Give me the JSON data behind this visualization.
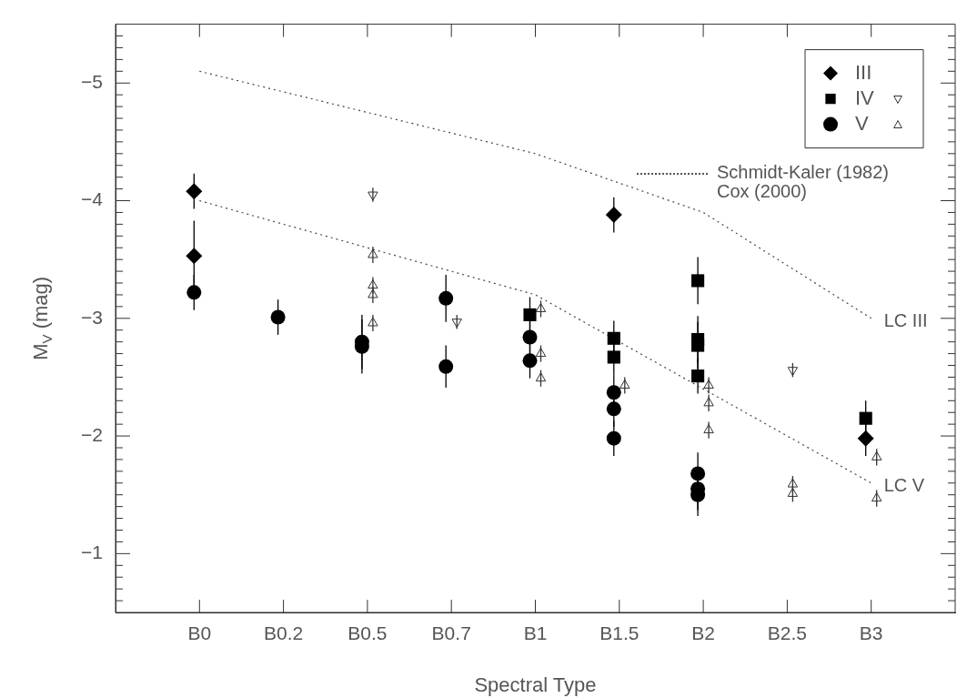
{
  "chart_data": {
    "type": "scatter",
    "xlabel": "Spectral Type",
    "ylabel": "M$_{V}$ (mag)",
    "categories": [
      "B0",
      "B0.2",
      "B0.5",
      "B0.7",
      "B1",
      "B1.5",
      "B2",
      "B2.5",
      "B3"
    ],
    "ylim": [
      -0.5,
      -5.5
    ],
    "yticks": [
      -5,
      -4,
      -3,
      -2,
      -1,
      {
        "value": -5.4,
        "label": null
      },
      {
        "value": -5.3,
        "label": null
      },
      {
        "value": -5.2,
        "label": null
      },
      {
        "value": -5.1,
        "label": null
      },
      {
        "value": -4.9,
        "label": null
      },
      {
        "value": -4.8,
        "label": null
      },
      {
        "value": -4.7,
        "label": null
      },
      {
        "value": -4.6,
        "label": null
      },
      {
        "value": -4.5,
        "label": null
      },
      {
        "value": -4.4,
        "label": null
      },
      {
        "value": -4.3,
        "label": null
      },
      {
        "value": -4.2,
        "label": null
      },
      {
        "value": -4.1,
        "label": null
      },
      {
        "value": -3.9,
        "label": null
      },
      {
        "value": -3.8,
        "label": null
      },
      {
        "value": -3.7,
        "label": null
      },
      {
        "value": -3.6,
        "label": null
      },
      {
        "value": -3.5,
        "label": null
      },
      {
        "value": -3.4,
        "label": null
      },
      {
        "value": -3.3,
        "label": null
      },
      {
        "value": -3.2,
        "label": null
      },
      {
        "value": -3.1,
        "label": null
      },
      {
        "value": -2.9,
        "label": null
      },
      {
        "value": -2.8,
        "label": null
      },
      {
        "value": -2.7,
        "label": null
      },
      {
        "value": -2.6,
        "label": null
      },
      {
        "value": -2.5,
        "label": null
      },
      {
        "value": -2.4,
        "label": null
      },
      {
        "value": -2.3,
        "label": null
      },
      {
        "value": -2.2,
        "label": null
      },
      {
        "value": -2.1,
        "label": null
      },
      {
        "value": -1.9,
        "label": null
      },
      {
        "value": -1.8,
        "label": null
      },
      {
        "value": -1.7,
        "label": null
      },
      {
        "value": -1.6,
        "label": null
      },
      {
        "value": -1.5,
        "label": null
      },
      {
        "value": -1.4,
        "label": null
      },
      {
        "value": -1.3,
        "label": null
      },
      {
        "value": -1.2,
        "label": null
      },
      {
        "value": -1.1,
        "label": null
      },
      {
        "value": -0.9,
        "label": null
      },
      {
        "value": -0.8,
        "label": null
      },
      {
        "value": -0.7,
        "label": null
      },
      {
        "value": -0.6,
        "label": null
      }
    ],
    "legend": "top right",
    "grid": false,
    "series": [
      {
        "name": "III",
        "marker": "diamond",
        "color": "#000000",
        "x": [
          "B0",
          "B0",
          "B1.5",
          "B3"
        ],
        "values": [
          -4.08,
          -3.53,
          -3.88,
          -1.98
        ],
        "errors": [
          0.15,
          0.3,
          0.15,
          0.15
        ]
      },
      {
        "name": "IV",
        "marker": "square",
        "color": "#000000",
        "x": [
          "B1",
          "B1.5",
          "B1.5",
          "B2",
          "B2",
          "B2",
          "B2",
          "B3"
        ],
        "values": [
          -3.03,
          -2.83,
          -2.67,
          -3.32,
          -2.82,
          -2.77,
          -2.51,
          -2.15
        ],
        "errors": [
          0.15,
          0.15,
          0.15,
          0.2,
          0.2,
          0.2,
          0.15,
          0.15
        ]
      },
      {
        "name": "V",
        "marker": "circle",
        "color": "#000000",
        "x": [
          "B0",
          "B0.2",
          "B0.5",
          "B0.5",
          "B0.7",
          "B0.7",
          "B1",
          "B1",
          "B1.5",
          "B1.5",
          "B1.5",
          "B2",
          "B2",
          "B2"
        ],
        "values": [
          -3.22,
          -3.01,
          -2.8,
          -2.76,
          -3.17,
          -2.59,
          -2.84,
          -2.64,
          -2.37,
          -2.23,
          -1.98,
          -1.68,
          -1.55,
          -1.5
        ],
        "errors": [
          0.15,
          0.15,
          0.23,
          0.23,
          0.2,
          0.18,
          0.15,
          0.15,
          0.15,
          0.15,
          0.15,
          0.18,
          0.18,
          0.18
        ]
      },
      {
        "marker": "triangle-down-open",
        "color": "#333333",
        "x": [
          "B0.5",
          "B0.7",
          "B2.5"
        ],
        "values": [
          -4.05,
          -2.97,
          -2.56
        ],
        "errors": [
          0.06,
          0.06,
          0.06
        ]
      },
      {
        "marker": "triangle-open",
        "color": "#333333",
        "x": [
          "B0.5",
          "B0.5",
          "B0.5",
          "B0.5",
          "B1",
          "B1",
          "B1",
          "B1.5",
          "B2",
          "B2",
          "B2",
          "B2.5",
          "B2.5",
          "B3",
          "B3"
        ],
        "values": [
          -3.54,
          -3.28,
          -3.2,
          -2.96,
          -3.08,
          -2.7,
          -2.49,
          -2.43,
          -2.43,
          -2.28,
          -2.05,
          -1.59,
          -1.51,
          -1.82,
          -1.47
        ],
        "errors": [
          0.07,
          0.07,
          0.07,
          0.07,
          0.07,
          0.07,
          0.07,
          0.07,
          0.07,
          0.07,
          0.07,
          0.07,
          0.07,
          0.07,
          0.07
        ]
      },
      {
        "type": "line",
        "marker": "none",
        "line_style": "dotted",
        "color": "#444444",
        "x": [
          "B0",
          "B1",
          "B2",
          "B3"
        ],
        "values": [
          -5.1,
          -4.4,
          -3.9,
          -3.0
        ]
      },
      {
        "type": "line",
        "marker": "none",
        "line_style": "dotted",
        "color": "#444444",
        "x": [
          "B0",
          "B1",
          "B3"
        ],
        "values": [
          -4.0,
          -3.2,
          -1.6
        ]
      }
    ],
    "annotations": [
      "Schmidt-Kaler (1982)",
      "Cox (2000)",
      {
        "text": "LC III",
        "x": "B3",
        "y": -3.0
      },
      {
        "text": "LC V",
        "x": "B3",
        "y": -1.6
      }
    ]
  }
}
